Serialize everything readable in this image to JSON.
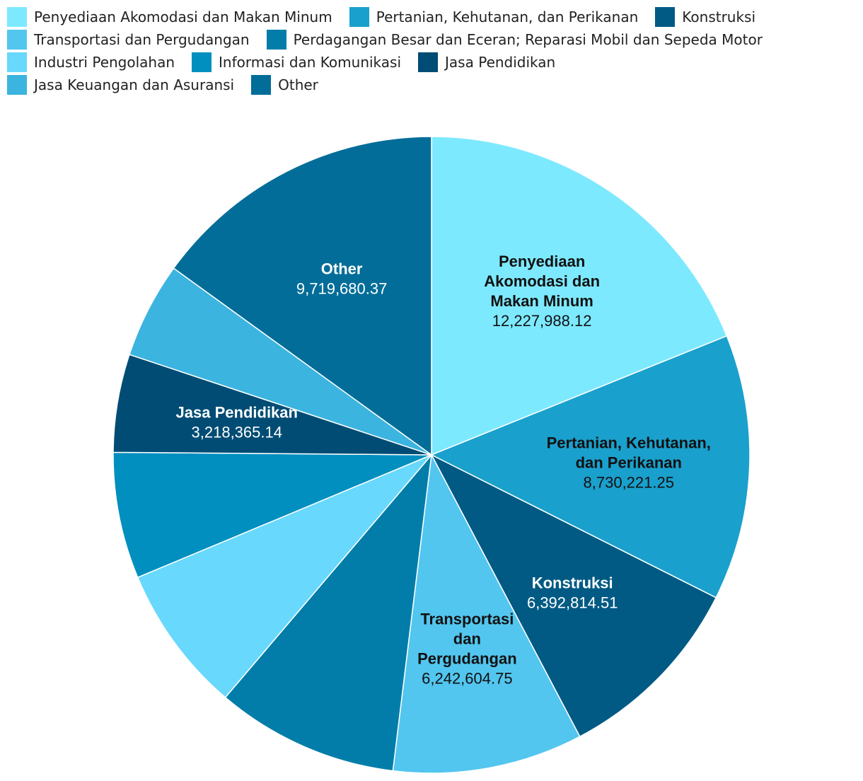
{
  "chart_data": {
    "type": "pie",
    "title": "",
    "legend_position": "top",
    "slices": [
      {
        "name": "Penyediaan Akomodasi dan Makan Minum",
        "value": 12227988.12,
        "value_label": "12,227,988.12",
        "label_lines": [
          "Penyediaan",
          "Akomodasi dan",
          "Makan Minum"
        ],
        "color": "#7de9ff",
        "text_color": "#111111"
      },
      {
        "name": "Pertanian, Kehutanan, dan Perikanan",
        "value": 8730221.25,
        "value_label": "8,730,221.25",
        "label_lines": [
          "Pertanian, Kehutanan,",
          "dan Perikanan"
        ],
        "color": "#1aa0cd",
        "text_color": "#111111"
      },
      {
        "name": "Konstruksi",
        "value": 6392814.51,
        "value_label": "6,392,814.51",
        "label_lines": [
          "Konstruksi"
        ],
        "color": "#015a84",
        "text_color": "#ffffff"
      },
      {
        "name": "Transportasi dan Pergudangan",
        "value": 6242604.75,
        "value_label": "6,242,604.75",
        "label_lines": [
          "Transportasi",
          "dan",
          "Pergudangan"
        ],
        "color": "#52c6ef",
        "text_color": "#111111"
      },
      {
        "name": "Perdagangan Besar dan Eceran; Reparasi Mobil dan Sepeda Motor",
        "value": 6000000,
        "value_label": "",
        "label_lines": [],
        "color": "#027da9",
        "text_color": "#ffffff"
      },
      {
        "name": "Industri Pengolahan",
        "value": 4850000,
        "value_label": "",
        "label_lines": [],
        "color": "#68d8fc",
        "text_color": "#111111"
      },
      {
        "name": "Informasi dan Komunikasi",
        "value": 4150000,
        "value_label": "",
        "label_lines": [],
        "color": "#018fbf",
        "text_color": "#ffffff"
      },
      {
        "name": "Jasa Pendidikan",
        "value": 3218365.14,
        "value_label": "3,218,365.14",
        "label_lines": [
          "Jasa Pendidikan"
        ],
        "color": "#004c74",
        "text_color": "#ffffff"
      },
      {
        "name": "Jasa Keuangan dan Asuransi",
        "value": 3150000,
        "value_label": "",
        "label_lines": [],
        "color": "#3cb4e0",
        "text_color": "#111111"
      },
      {
        "name": "Other",
        "value": 9719680.37,
        "value_label": "9,719,680.37",
        "label_lines": [
          "Other"
        ],
        "color": "#026d98",
        "text_color": "#ffffff"
      }
    ]
  },
  "legend": {
    "rows": [
      [
        {
          "label": "Penyediaan Akomodasi dan Makan Minum",
          "color": "#7de9ff"
        },
        {
          "label": "Pertanian, Kehutanan, dan Perikanan",
          "color": "#1aa0cd"
        },
        {
          "label": "Konstruksi",
          "color": "#015a84"
        }
      ],
      [
        {
          "label": "Transportasi dan Pergudangan",
          "color": "#52c6ef"
        },
        {
          "label": "Perdagangan Besar dan Eceran; Reparasi Mobil dan Sepeda Motor",
          "color": "#027da9"
        }
      ],
      [
        {
          "label": "Industri Pengolahan",
          "color": "#68d8fc"
        },
        {
          "label": "Informasi dan Komunikasi",
          "color": "#018fbf"
        },
        {
          "label": "Jasa Pendidikan",
          "color": "#004c74"
        }
      ],
      [
        {
          "label": "Jasa Keuangan dan Asuransi",
          "color": "#3cb4e0"
        },
        {
          "label": "Other",
          "color": "#026d98"
        }
      ]
    ]
  }
}
